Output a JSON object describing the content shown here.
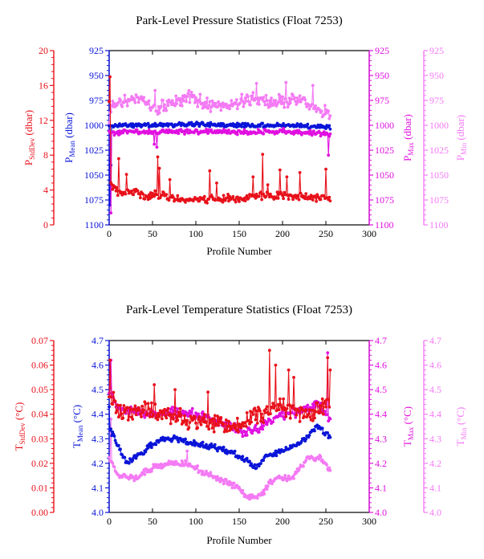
{
  "colors": {
    "red": "#e8101a",
    "blue": "#0a14d8",
    "magenta": "#e010e0",
    "pink": "#f47af4",
    "axis": "#000000"
  },
  "chart_data": [
    {
      "type": "scatter",
      "title": "Park-Level Pressure Statistics (Float 7253)",
      "xlabel": "Profile Number",
      "xlim": [
        0,
        300
      ],
      "xticks": [
        "0",
        "50",
        "100",
        "150",
        "200",
        "250",
        "300"
      ],
      "axes": [
        {
          "key": "std",
          "label_main": "P",
          "label_sub": "StdDev",
          "label_unit": " (dbar)",
          "ticks": [
            "0",
            "4",
            "8",
            "12",
            "16",
            "20"
          ],
          "color": "red"
        },
        {
          "key": "mean",
          "label_main": "P",
          "label_sub": "Mean",
          "label_unit": " (dbar)",
          "ticks": [
            "1100",
            "1075",
            "1050",
            "1025",
            "1000",
            "975",
            "950",
            "925"
          ],
          "color": "blue"
        },
        {
          "key": "max",
          "label_main": "P",
          "label_sub": "Max",
          "label_unit": " (dbar)",
          "ticks": [
            "1100",
            "1075",
            "1050",
            "1025",
            "1000",
            "975",
            "950",
            "925"
          ],
          "color": "magenta"
        },
        {
          "key": "min",
          "label_main": "P",
          "label_sub": "Min",
          "label_unit": " (dbar)",
          "ticks": [
            "1100",
            "1075",
            "1050",
            "1025",
            "1000",
            "975",
            "950",
            "925"
          ],
          "color": "pink"
        }
      ],
      "series": [
        {
          "axis": "min",
          "color": "pink",
          "range": [
            1100,
            925
          ],
          "mode": "segments",
          "segments": [
            [
              0,
              1002
            ],
            [
              2,
              982
            ],
            [
              20,
              975
            ],
            [
              40,
              975
            ],
            [
              55,
              985
            ],
            [
              70,
              978
            ],
            [
              90,
              972
            ],
            [
              110,
              978
            ],
            [
              130,
              980
            ],
            [
              150,
              976
            ],
            [
              170,
              974
            ],
            [
              190,
              976
            ],
            [
              210,
              975
            ],
            [
              230,
              978
            ],
            [
              250,
              988
            ],
            [
              255,
              990
            ]
          ],
          "noise": 8,
          "seed": 11,
          "spikes": [
            [
              53,
              965
            ],
            [
              91,
              968
            ],
            [
              170,
              958
            ],
            [
              204,
              957
            ],
            [
              235,
              960
            ]
          ]
        },
        {
          "axis": "mean",
          "color": "blue",
          "range": [
            1100,
            925
          ],
          "mode": "segments",
          "segments": [
            [
              0,
              1002
            ],
            [
              10,
              1000
            ],
            [
              60,
              1000
            ],
            [
              100,
              999
            ],
            [
              150,
              1000
            ],
            [
              200,
              1000
            ],
            [
              255,
              1002
            ]
          ],
          "noise": 2.5,
          "seed": 21,
          "spikes": [
            [
              1,
              1080
            ],
            [
              2,
              1040
            ]
          ]
        },
        {
          "axis": "max",
          "color": "magenta",
          "range": [
            1100,
            925
          ],
          "mode": "segments",
          "segments": [
            [
              0,
              1008
            ],
            [
              20,
              1006
            ],
            [
              60,
              1007
            ],
            [
              100,
              1006
            ],
            [
              150,
              1007
            ],
            [
              200,
              1006
            ],
            [
              255,
              1009
            ]
          ],
          "noise": 3,
          "seed": 31,
          "spikes": [
            [
              2,
              1088
            ],
            [
              52,
              1019
            ],
            [
              55,
              1022
            ],
            [
              253,
              1030
            ]
          ]
        },
        {
          "axis": "std",
          "color": "red",
          "range": [
            0,
            20
          ],
          "mode": "segments",
          "segments": [
            [
              0,
              14
            ],
            [
              2,
              4.8
            ],
            [
              10,
              3.6
            ],
            [
              30,
              3.8
            ],
            [
              40,
              3.3
            ],
            [
              60,
              3.5
            ],
            [
              80,
              2.9
            ],
            [
              120,
              3.0
            ],
            [
              150,
              3.0
            ],
            [
              180,
              3.4
            ],
            [
              220,
              3.3
            ],
            [
              255,
              3.0
            ]
          ],
          "noise": 0.55,
          "seed": 41,
          "spikes": [
            [
              1,
              17
            ],
            [
              11,
              7.6
            ],
            [
              20,
              5.8
            ],
            [
              56,
              7.8
            ],
            [
              58,
              6.5
            ],
            [
              70,
              5.2
            ],
            [
              116,
              6.2
            ],
            [
              124,
              4.8
            ],
            [
              166,
              5.5
            ],
            [
              177,
              8.1
            ],
            [
              183,
              4.6
            ],
            [
              197,
              6.3
            ],
            [
              205,
              5.5
            ],
            [
              220,
              6.0
            ],
            [
              250,
              6.4
            ]
          ]
        }
      ]
    },
    {
      "type": "scatter",
      "title": "Park-Level Temperature Statistics (Float 7253)",
      "xlabel": "Profile Number",
      "xlim": [
        0,
        300
      ],
      "xticks": [
        "0",
        "50",
        "100",
        "150",
        "200",
        "250",
        "300"
      ],
      "axes": [
        {
          "key": "std",
          "label_main": "T",
          "label_sub": "StdDev",
          "label_unit": " (°C)",
          "ticks": [
            "0.00",
            "0.01",
            "0.02",
            "0.03",
            "0.04",
            "0.05",
            "0.06",
            "0.07"
          ],
          "color": "red"
        },
        {
          "key": "mean",
          "label_main": "T",
          "label_sub": "Mean",
          "label_unit": " (°C)",
          "ticks": [
            "4.0",
            "4.1",
            "4.2",
            "4.3",
            "4.4",
            "4.5",
            "4.6",
            "4.7"
          ],
          "color": "blue"
        },
        {
          "key": "max",
          "label_main": "T",
          "label_sub": "Max",
          "label_unit": " (°C)",
          "ticks": [
            "4.0",
            "4.1",
            "4.2",
            "4.3",
            "4.4",
            "4.5",
            "4.6",
            "4.7"
          ],
          "color": "magenta"
        },
        {
          "key": "min",
          "label_main": "T",
          "label_sub": "Min",
          "label_unit": " (°C)",
          "ticks": [
            "4.0",
            "4.1",
            "4.2",
            "4.3",
            "4.4",
            "4.5",
            "4.6",
            "4.7"
          ],
          "color": "pink"
        }
      ],
      "series": [
        {
          "axis": "min",
          "color": "pink",
          "range": [
            4.0,
            4.7
          ],
          "mode": "segments",
          "segments": [
            [
              0,
              4.23
            ],
            [
              10,
              4.15
            ],
            [
              30,
              4.14
            ],
            [
              50,
              4.18
            ],
            [
              70,
              4.2
            ],
            [
              90,
              4.2
            ],
            [
              110,
              4.16
            ],
            [
              130,
              4.13
            ],
            [
              150,
              4.1
            ],
            [
              160,
              4.06
            ],
            [
              175,
              4.07
            ],
            [
              190,
              4.14
            ],
            [
              210,
              4.14
            ],
            [
              230,
              4.22
            ],
            [
              245,
              4.22
            ],
            [
              255,
              4.17
            ]
          ],
          "noise": 0.015,
          "seed": 12,
          "spikes": [
            [
              2,
              4.38
            ],
            [
              90,
              4.25
            ]
          ]
        },
        {
          "axis": "mean",
          "color": "blue",
          "range": [
            4.0,
            4.7
          ],
          "mode": "segments",
          "segments": [
            [
              0,
              4.35
            ],
            [
              10,
              4.27
            ],
            [
              20,
              4.2
            ],
            [
              40,
              4.25
            ],
            [
              60,
              4.3
            ],
            [
              80,
              4.3
            ],
            [
              100,
              4.28
            ],
            [
              120,
              4.27
            ],
            [
              150,
              4.23
            ],
            [
              170,
              4.18
            ],
            [
              180,
              4.23
            ],
            [
              200,
              4.25
            ],
            [
              220,
              4.28
            ],
            [
              240,
              4.35
            ],
            [
              255,
              4.31
            ]
          ],
          "noise": 0.015,
          "seed": 22,
          "spikes": [
            [
              0,
              4.43
            ]
          ]
        },
        {
          "axis": "max",
          "color": "magenta",
          "range": [
            4.0,
            4.7
          ],
          "mode": "segments",
          "segments": [
            [
              0,
              4.5
            ],
            [
              10,
              4.42
            ],
            [
              30,
              4.41
            ],
            [
              50,
              4.4
            ],
            [
              80,
              4.41
            ],
            [
              110,
              4.39
            ],
            [
              140,
              4.35
            ],
            [
              160,
              4.32
            ],
            [
              180,
              4.36
            ],
            [
              200,
              4.4
            ],
            [
              220,
              4.41
            ],
            [
              240,
              4.44
            ],
            [
              255,
              4.38
            ]
          ],
          "noise": 0.025,
          "seed": 32,
          "spikes": [
            [
              2,
              4.62
            ],
            [
              252,
              4.65
            ]
          ]
        },
        {
          "axis": "std",
          "color": "red",
          "range": [
            0,
            0.07
          ],
          "mode": "segments",
          "segments": [
            [
              0,
              0.05
            ],
            [
              10,
              0.04
            ],
            [
              40,
              0.042
            ],
            [
              80,
              0.038
            ],
            [
              120,
              0.036
            ],
            [
              150,
              0.035
            ],
            [
              170,
              0.04
            ],
            [
              200,
              0.043
            ],
            [
              230,
              0.04
            ],
            [
              255,
              0.044
            ]
          ],
          "noise": 0.0045,
          "seed": 42,
          "spikes": [
            [
              1,
              0.062
            ],
            [
              52,
              0.052
            ],
            [
              76,
              0.05
            ],
            [
              114,
              0.049
            ],
            [
              185,
              0.066
            ],
            [
              192,
              0.06
            ],
            [
              207,
              0.058
            ],
            [
              213,
              0.055
            ],
            [
              252,
              0.063
            ],
            [
              255,
              0.058
            ]
          ]
        }
      ]
    }
  ]
}
